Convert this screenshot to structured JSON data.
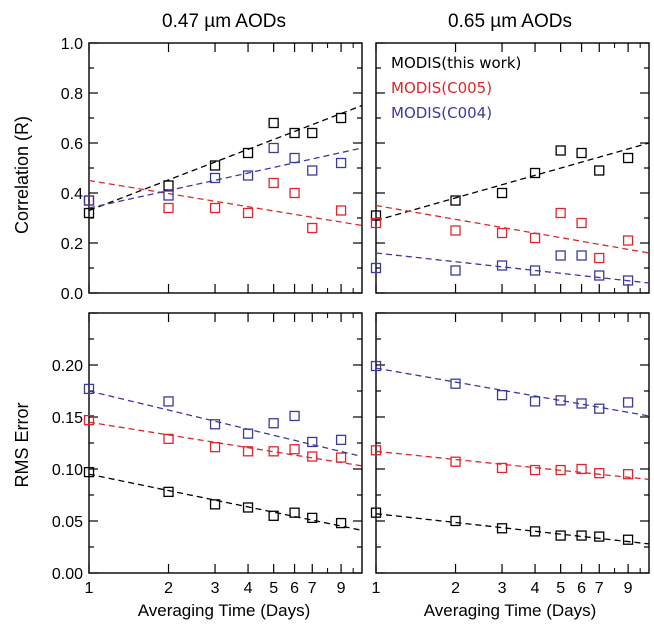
{
  "colors": {
    "MODIS(this work)": "#000000",
    "MODIS(C005)": "#e0262a",
    "MODIS(C004)": "#3a3aa0"
  },
  "titles": [
    "0.47 µm AODs",
    "0.65 µm AODs"
  ],
  "xlabel": "Averaging Time (Days)",
  "legend": [
    "MODIS(this work)",
    "MODIS(C005)",
    "MODIS(C004)"
  ],
  "chart_data": [
    {
      "type": "scatter",
      "title": "0.47 µm AODs",
      "ylabel": "Correlation (R)",
      "xlabel": "",
      "xscale": "log",
      "xlim": [
        1,
        10.8
      ],
      "xticks": [
        1,
        2,
        3,
        4,
        5,
        6,
        7,
        9
      ],
      "ylim": [
        0,
        1.0
      ],
      "yticks": [
        "0.0",
        "0.2",
        "0.4",
        "0.6",
        "0.8",
        "1.0"
      ],
      "x": [
        1,
        2,
        3,
        4,
        5,
        6,
        7,
        9
      ],
      "series": [
        {
          "name": "MODIS(this work)",
          "values": [
            0.32,
            0.43,
            0.51,
            0.56,
            0.68,
            0.64,
            0.64,
            0.7
          ],
          "trend": [
            0.33,
            0.75
          ]
        },
        {
          "name": "MODIS(C005)",
          "values": [
            0.37,
            0.34,
            0.34,
            0.32,
            0.44,
            0.4,
            0.26,
            0.33
          ],
          "trend": [
            0.45,
            0.27
          ]
        },
        {
          "name": "MODIS(C004)",
          "values": [
            0.37,
            0.39,
            0.46,
            0.47,
            0.58,
            0.54,
            0.49,
            0.52
          ],
          "trend": [
            0.34,
            0.58
          ]
        }
      ]
    },
    {
      "type": "scatter",
      "title": "0.65 µm AODs",
      "ylabel": "",
      "xlabel": "",
      "xscale": "log",
      "xlim": [
        1,
        10.8
      ],
      "xticks": [
        1,
        2,
        3,
        4,
        5,
        6,
        7,
        9
      ],
      "ylim": [
        0,
        1.0
      ],
      "yticks": [],
      "x": [
        1,
        2,
        3,
        4,
        5,
        6,
        7,
        9
      ],
      "legend": [
        "MODIS(this work)",
        "MODIS(C005)",
        "MODIS(C004)"
      ],
      "series": [
        {
          "name": "MODIS(this work)",
          "values": [
            0.31,
            0.37,
            0.4,
            0.48,
            0.57,
            0.56,
            0.49,
            0.54
          ],
          "trend": [
            0.29,
            0.6
          ]
        },
        {
          "name": "MODIS(C005)",
          "values": [
            0.28,
            0.25,
            0.24,
            0.22,
            0.32,
            0.28,
            0.14,
            0.21
          ],
          "trend": [
            0.35,
            0.16
          ]
        },
        {
          "name": "MODIS(C004)",
          "values": [
            0.1,
            0.09,
            0.11,
            0.09,
            0.15,
            0.15,
            0.07,
            0.05
          ],
          "trend": [
            0.16,
            0.04
          ]
        }
      ]
    },
    {
      "type": "scatter",
      "title": "",
      "ylabel": "RMS Error",
      "xlabel": "Averaging Time (Days)",
      "xscale": "log",
      "xlim": [
        1,
        10.8
      ],
      "xticks": [
        1,
        2,
        3,
        4,
        5,
        6,
        7,
        9
      ],
      "ylim": [
        0,
        0.25
      ],
      "yticks": [
        "0.00",
        "0.05",
        "0.10",
        "0.15",
        "0.20"
      ],
      "x": [
        1,
        2,
        3,
        4,
        5,
        6,
        7,
        9
      ],
      "series": [
        {
          "name": "MODIS(this work)",
          "values": [
            0.097,
            0.078,
            0.066,
            0.063,
            0.055,
            0.058,
            0.053,
            0.048
          ],
          "trend": [
            0.095,
            0.041
          ]
        },
        {
          "name": "MODIS(C005)",
          "values": [
            0.147,
            0.129,
            0.121,
            0.117,
            0.117,
            0.119,
            0.112,
            0.111
          ],
          "trend": [
            0.145,
            0.103
          ]
        },
        {
          "name": "MODIS(C004)",
          "values": [
            0.177,
            0.165,
            0.143,
            0.134,
            0.144,
            0.151,
            0.126,
            0.128
          ],
          "trend": [
            0.175,
            0.112
          ]
        }
      ]
    },
    {
      "type": "scatter",
      "title": "",
      "ylabel": "",
      "xlabel": "Averaging Time (Days)",
      "xscale": "log",
      "xlim": [
        1,
        10.8
      ],
      "xticks": [
        1,
        2,
        3,
        4,
        5,
        6,
        7,
        9
      ],
      "ylim": [
        0,
        0.25
      ],
      "yticks": [],
      "x": [
        1,
        2,
        3,
        4,
        5,
        6,
        7,
        9
      ],
      "series": [
        {
          "name": "MODIS(this work)",
          "values": [
            0.058,
            0.05,
            0.043,
            0.04,
            0.036,
            0.036,
            0.035,
            0.032
          ],
          "trend": [
            0.057,
            0.028
          ]
        },
        {
          "name": "MODIS(C005)",
          "values": [
            0.118,
            0.107,
            0.101,
            0.099,
            0.099,
            0.1,
            0.096,
            0.095
          ],
          "trend": [
            0.117,
            0.09
          ]
        },
        {
          "name": "MODIS(C004)",
          "values": [
            0.199,
            0.182,
            0.171,
            0.165,
            0.166,
            0.163,
            0.158,
            0.164
          ],
          "trend": [
            0.197,
            0.151
          ]
        }
      ]
    }
  ]
}
